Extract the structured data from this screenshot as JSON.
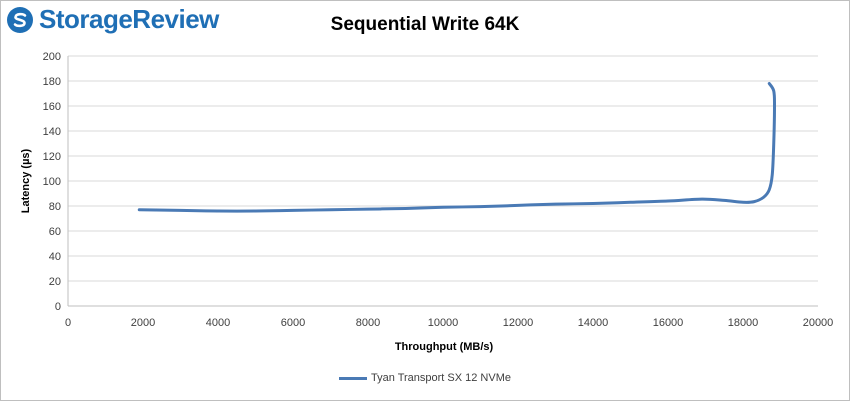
{
  "brand": {
    "name": "StorageReview"
  },
  "chart_data": {
    "type": "line",
    "title": "Sequential Write 64K",
    "xlabel": "Throughput (MB/s)",
    "ylabel": "Latency (µs)",
    "xlim": [
      0,
      20000
    ],
    "ylim": [
      0,
      200
    ],
    "x_ticks": [
      0,
      2000,
      4000,
      6000,
      8000,
      10000,
      12000,
      14000,
      16000,
      18000,
      20000
    ],
    "y_ticks": [
      0,
      20,
      40,
      60,
      80,
      100,
      120,
      140,
      160,
      180,
      200
    ],
    "grid": "horizontal",
    "legend_position": "bottom",
    "series": [
      {
        "name": "Tyan Transport SX 12 NVMe",
        "color": "#4a7ab5",
        "points": [
          [
            1900,
            77
          ],
          [
            3000,
            76.5
          ],
          [
            4000,
            76
          ],
          [
            5000,
            76
          ],
          [
            6000,
            76.5
          ],
          [
            7000,
            77
          ],
          [
            8000,
            77.5
          ],
          [
            9000,
            78
          ],
          [
            10000,
            79
          ],
          [
            11000,
            79.5
          ],
          [
            12000,
            80.5
          ],
          [
            13000,
            81.5
          ],
          [
            14000,
            82
          ],
          [
            15000,
            83
          ],
          [
            16000,
            84
          ],
          [
            16900,
            85.5
          ],
          [
            17500,
            84.5
          ],
          [
            18000,
            83
          ],
          [
            18300,
            83.5
          ],
          [
            18550,
            87
          ],
          [
            18700,
            93
          ],
          [
            18780,
            105
          ],
          [
            18820,
            130
          ],
          [
            18840,
            160
          ],
          [
            18820,
            172
          ],
          [
            18700,
            178
          ]
        ]
      }
    ]
  }
}
